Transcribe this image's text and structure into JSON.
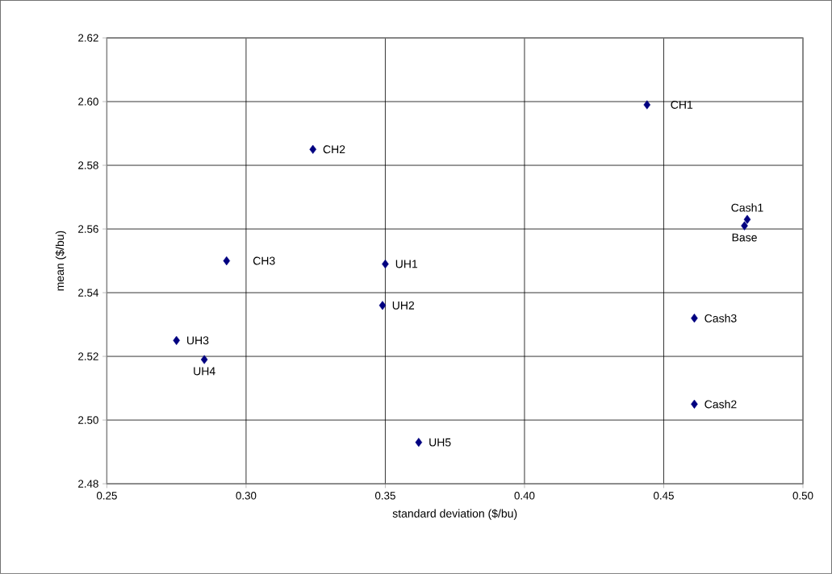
{
  "chart_data": {
    "type": "scatter",
    "xlabel": "standard deviation ($/bu)",
    "ylabel": "mean ($/bu)",
    "x": [
      0.444,
      0.324,
      0.293,
      0.35,
      0.349,
      0.275,
      0.285,
      0.362,
      0.48,
      0.479,
      0.461,
      0.461
    ],
    "values": [
      2.599,
      2.585,
      2.55,
      2.549,
      2.536,
      2.525,
      2.519,
      2.493,
      2.563,
      2.561,
      2.532,
      2.505
    ],
    "color": "#000080",
    "marker": "diamond",
    "grid": true,
    "xlim": [
      0.25,
      0.5
    ],
    "ylim": [
      2.48,
      2.62
    ],
    "xticks": [
      {
        "value": 0.25,
        "label": "0.25"
      },
      {
        "value": 0.3,
        "label": "0.30"
      },
      {
        "value": 0.35,
        "label": "0.35"
      },
      {
        "value": 0.4,
        "label": "0.40"
      },
      {
        "value": 0.45,
        "label": "0.45"
      },
      {
        "value": 0.5,
        "label": "0.50"
      }
    ],
    "yticks": [
      {
        "value": 2.48,
        "label": "2.48"
      },
      {
        "value": 2.5,
        "label": "2.50"
      },
      {
        "value": 2.52,
        "label": "2.52"
      },
      {
        "value": 2.54,
        "label": "2.54"
      },
      {
        "value": 2.56,
        "label": "2.56"
      },
      {
        "value": 2.58,
        "label": "2.58"
      },
      {
        "value": 2.6,
        "label": "2.60"
      },
      {
        "value": 2.62,
        "label": "2.62"
      }
    ],
    "annotations": [
      {
        "text": "CH1",
        "x": 0.444,
        "y": 2.599
      },
      {
        "text": "CH2",
        "x": 0.324,
        "y": 2.585
      },
      {
        "text": "CH3",
        "x": 0.293,
        "y": 2.55
      },
      {
        "text": "UH1",
        "x": 0.35,
        "y": 2.549
      },
      {
        "text": "UH2",
        "x": 0.349,
        "y": 2.536
      },
      {
        "text": "UH3",
        "x": 0.275,
        "y": 2.525
      },
      {
        "text": "UH4",
        "x": 0.285,
        "y": 2.519
      },
      {
        "text": "UH5",
        "x": 0.362,
        "y": 2.493
      },
      {
        "text": "Cash1",
        "x": 0.48,
        "y": 2.563
      },
      {
        "text": "Base",
        "x": 0.479,
        "y": 2.561
      },
      {
        "text": "Cash3",
        "x": 0.461,
        "y": 2.532
      },
      {
        "text": "Cash2",
        "x": 0.461,
        "y": 2.505
      }
    ]
  }
}
